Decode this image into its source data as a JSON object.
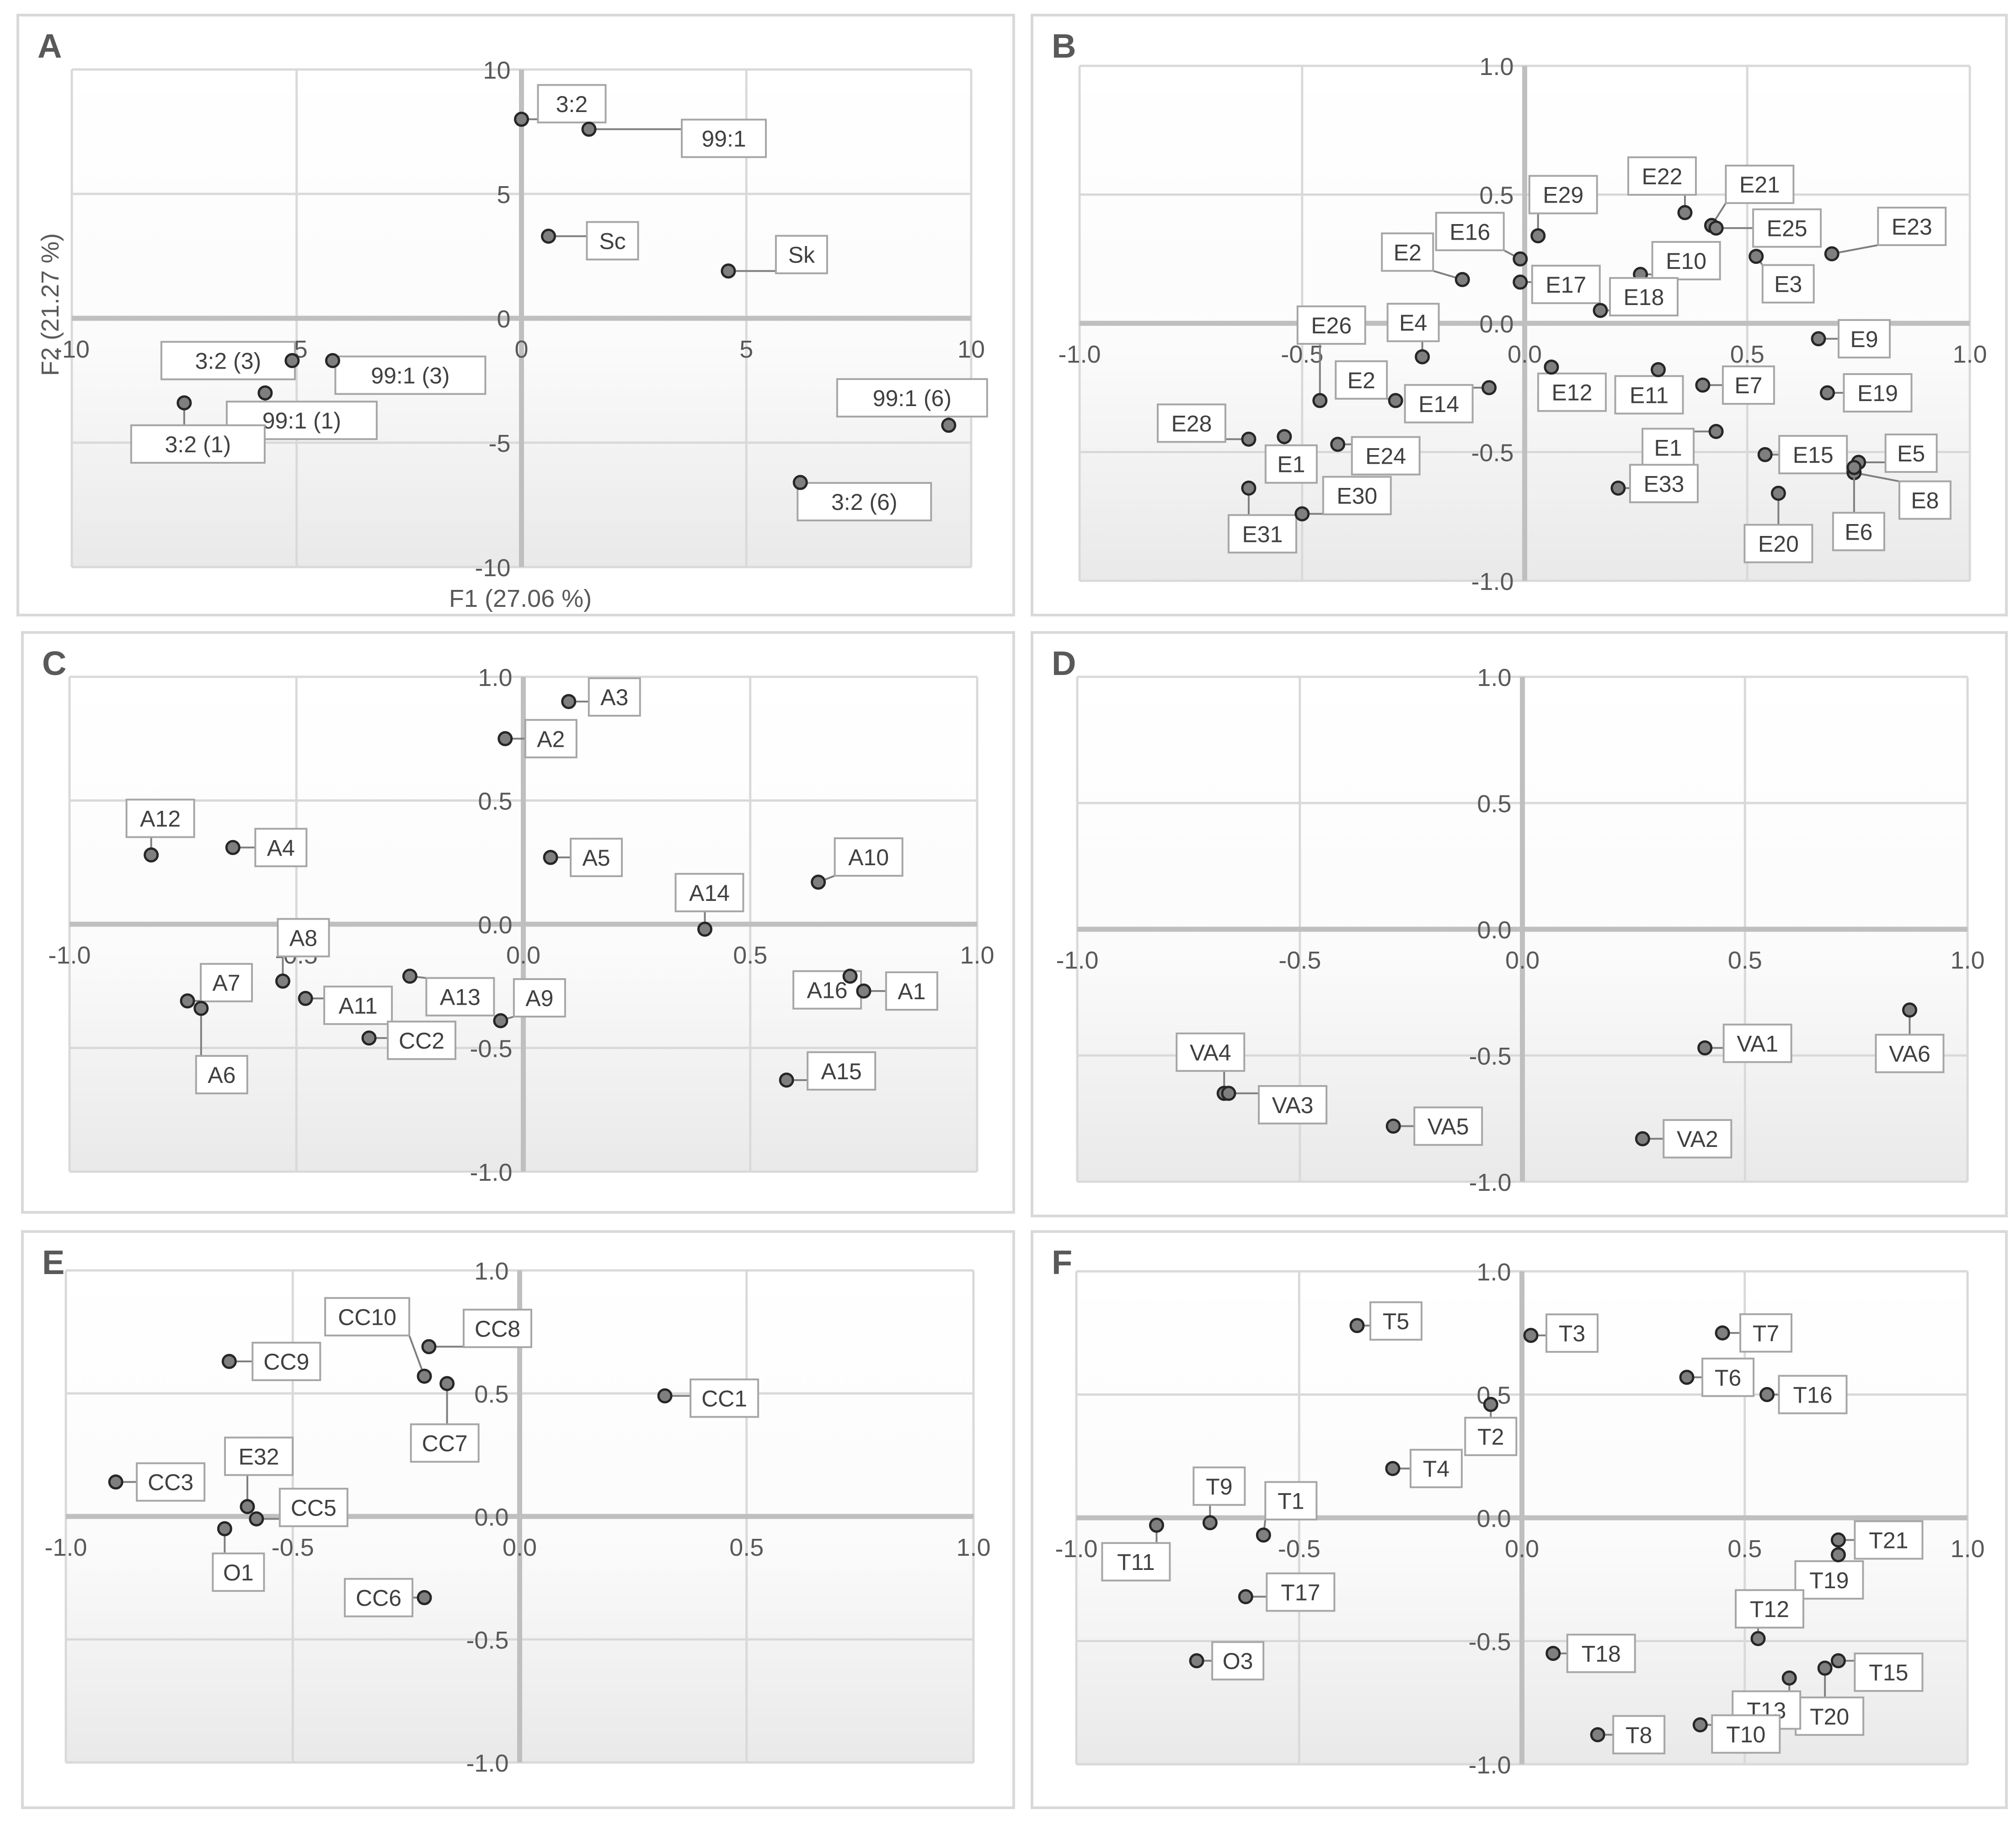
{
  "chart_data": [
    {
      "type": "scatter",
      "panel": "A",
      "xlabel": "F1 (27.06 %)",
      "ylabel": "F2 (21.27 %)",
      "xlim": [
        -10,
        10
      ],
      "ylim": [
        -10,
        10
      ],
      "xticks": [
        -10,
        -5,
        0,
        5,
        10
      ],
      "yticks": [
        -10,
        -5,
        0,
        5,
        10
      ],
      "tick_labels_x": [
        "-10",
        "-5",
        "0",
        "5",
        "10"
      ],
      "tick_labels_y": [
        "-10",
        "-5",
        "0",
        "5",
        "10"
      ],
      "points": [
        {
          "label": "3:2",
          "x": 0.0,
          "y": 8.0
        },
        {
          "label": "99:1",
          "x": 1.5,
          "y": 7.6
        },
        {
          "label": "Sc",
          "x": 0.6,
          "y": 3.3
        },
        {
          "label": "Sk",
          "x": 4.6,
          "y": 1.9
        },
        {
          "label": "3:2 (3)",
          "x": -5.1,
          "y": -1.7
        },
        {
          "label": "99:1 (3)",
          "x": -4.2,
          "y": -1.7
        },
        {
          "label": "99:1 (1)",
          "x": -5.7,
          "y": -3.0
        },
        {
          "label": "3:2 (1)",
          "x": -7.5,
          "y": -3.4
        },
        {
          "label": "99:1 (6)",
          "x": 9.5,
          "y": -4.3
        },
        {
          "label": "3:2 (6)",
          "x": 6.2,
          "y": -6.6
        }
      ]
    },
    {
      "type": "scatter",
      "panel": "B",
      "xlim": [
        -1.0,
        1.0
      ],
      "ylim": [
        -1.0,
        1.0
      ],
      "xticks": [
        -1.0,
        -0.5,
        0.0,
        0.5,
        1.0
      ],
      "yticks": [
        -1.0,
        -0.5,
        0.0,
        0.5,
        1.0
      ],
      "tick_labels_x": [
        "-1.0",
        "-0.5",
        "0.0",
        "0.5",
        "1.0"
      ],
      "tick_labels_y": [
        "-1.0",
        "-0.5",
        "0.0",
        "0.5",
        "1.0"
      ],
      "points": [
        {
          "label": "E22",
          "x": 0.36,
          "y": 0.43
        },
        {
          "label": "E21",
          "x": 0.42,
          "y": 0.38
        },
        {
          "label": "E25",
          "x": 0.43,
          "y": 0.37
        },
        {
          "label": "E29",
          "x": 0.03,
          "y": 0.34
        },
        {
          "label": "E16",
          "x": -0.01,
          "y": 0.25
        },
        {
          "label": "E23",
          "x": 0.69,
          "y": 0.27
        },
        {
          "label": "E3",
          "x": 0.52,
          "y": 0.26
        },
        {
          "label": "E10",
          "x": 0.26,
          "y": 0.19
        },
        {
          "label": "E2",
          "x": -0.14,
          "y": 0.17
        },
        {
          "label": "E17",
          "x": -0.01,
          "y": 0.16
        },
        {
          "label": "E18",
          "x": 0.17,
          "y": 0.05
        },
        {
          "label": "E9",
          "x": 0.66,
          "y": -0.06
        },
        {
          "label": "E4",
          "x": -0.23,
          "y": -0.13
        },
        {
          "label": "E12",
          "x": 0.06,
          "y": -0.17
        },
        {
          "label": "E11",
          "x": 0.3,
          "y": -0.18
        },
        {
          "label": "E7",
          "x": 0.4,
          "y": -0.24
        },
        {
          "label": "E19",
          "x": 0.68,
          "y": -0.27
        },
        {
          "label": "E14",
          "x": -0.08,
          "y": -0.25
        },
        {
          "label": "E26",
          "x": -0.46,
          "y": -0.3
        },
        {
          "label": "E2",
          "x": -0.29,
          "y": -0.3
        },
        {
          "label": "E28",
          "x": -0.62,
          "y": -0.45
        },
        {
          "label": "E1",
          "x": -0.54,
          "y": -0.44
        },
        {
          "label": "E24",
          "x": -0.42,
          "y": -0.47
        },
        {
          "label": "E1",
          "x": 0.43,
          "y": -0.42
        },
        {
          "label": "E15",
          "x": 0.54,
          "y": -0.51
        },
        {
          "label": "E5",
          "x": 0.75,
          "y": -0.54
        },
        {
          "label": "E8",
          "x": 0.74,
          "y": -0.58
        },
        {
          "label": "E6",
          "x": 0.74,
          "y": -0.56
        },
        {
          "label": "E20",
          "x": 0.57,
          "y": -0.66
        },
        {
          "label": "E33",
          "x": 0.21,
          "y": -0.64
        },
        {
          "label": "E31",
          "x": -0.62,
          "y": -0.64
        },
        {
          "label": "E30",
          "x": -0.5,
          "y": -0.74
        }
      ]
    },
    {
      "type": "scatter",
      "panel": "C",
      "xlim": [
        -1.0,
        1.0
      ],
      "ylim": [
        -1.0,
        1.0
      ],
      "xticks": [
        -1.0,
        -0.5,
        0.0,
        0.5,
        1.0
      ],
      "yticks": [
        -1.0,
        -0.5,
        0.0,
        0.5,
        1.0
      ],
      "tick_labels_x": [
        "-1.0",
        "-0.5",
        "0.0",
        "0.5",
        "1.0"
      ],
      "tick_labels_y": [
        "-1.0",
        "-0.5",
        "0.0",
        "0.5",
        "1.0"
      ],
      "points": [
        {
          "label": "A3",
          "x": 0.1,
          "y": 0.9
        },
        {
          "label": "A2",
          "x": -0.04,
          "y": 0.75
        },
        {
          "label": "A12",
          "x": -0.82,
          "y": 0.28
        },
        {
          "label": "A4",
          "x": -0.64,
          "y": 0.31
        },
        {
          "label": "A5",
          "x": 0.06,
          "y": 0.27
        },
        {
          "label": "A10",
          "x": 0.65,
          "y": 0.17
        },
        {
          "label": "A14",
          "x": 0.4,
          "y": -0.02
        },
        {
          "label": "A8",
          "x": -0.53,
          "y": -0.23
        },
        {
          "label": "A11",
          "x": -0.48,
          "y": -0.3
        },
        {
          "label": "A13",
          "x": -0.25,
          "y": -0.21
        },
        {
          "label": "A9",
          "x": -0.05,
          "y": -0.39
        },
        {
          "label": "CC2",
          "x": -0.34,
          "y": -0.46
        },
        {
          "label": "A7",
          "x": -0.74,
          "y": -0.31
        },
        {
          "label": "A6",
          "x": -0.71,
          "y": -0.34
        },
        {
          "label": "A16",
          "x": 0.72,
          "y": -0.21
        },
        {
          "label": "A1",
          "x": 0.75,
          "y": -0.27
        },
        {
          "label": "A15",
          "x": 0.58,
          "y": -0.63
        }
      ]
    },
    {
      "type": "scatter",
      "panel": "D",
      "xlim": [
        -1.0,
        1.0
      ],
      "ylim": [
        -1.0,
        1.0
      ],
      "xticks": [
        -1.0,
        -0.5,
        0.0,
        0.5,
        1.0
      ],
      "yticks": [
        -1.0,
        -0.5,
        0.0,
        0.5,
        1.0
      ],
      "tick_labels_x": [
        "-1.0",
        "-0.5",
        "0.0",
        "0.5",
        "1.0"
      ],
      "tick_labels_y": [
        "-1.0",
        "-0.5",
        "0.0",
        "0.5",
        "1.0"
      ],
      "points": [
        {
          "label": "VA6",
          "x": 0.87,
          "y": -0.32
        },
        {
          "label": "VA1",
          "x": 0.41,
          "y": -0.47
        },
        {
          "label": "VA4",
          "x": -0.67,
          "y": -0.65
        },
        {
          "label": "VA3",
          "x": -0.66,
          "y": -0.65
        },
        {
          "label": "VA5",
          "x": -0.29,
          "y": -0.78
        },
        {
          "label": "VA2",
          "x": 0.27,
          "y": -0.83
        }
      ]
    },
    {
      "type": "scatter",
      "panel": "E",
      "xlim": [
        -1.0,
        1.0
      ],
      "ylim": [
        -1.0,
        1.0
      ],
      "xticks": [
        -1.0,
        -0.5,
        0.0,
        0.5,
        1.0
      ],
      "yticks": [
        -1.0,
        -0.5,
        0.0,
        0.5,
        1.0
      ],
      "tick_labels_x": [
        "-1.0",
        "-0.5",
        "0.0",
        "0.5",
        "1.0"
      ],
      "tick_labels_y": [
        "-1.0",
        "-0.5",
        "0.0",
        "0.5",
        "1.0"
      ],
      "points": [
        {
          "label": "CC8",
          "x": -0.2,
          "y": 0.69
        },
        {
          "label": "CC10",
          "x": -0.21,
          "y": 0.57
        },
        {
          "label": "CC7",
          "x": -0.16,
          "y": 0.54
        },
        {
          "label": "CC9",
          "x": -0.64,
          "y": 0.63
        },
        {
          "label": "CC1",
          "x": 0.32,
          "y": 0.49
        },
        {
          "label": "CC3",
          "x": -0.89,
          "y": 0.14
        },
        {
          "label": "E32",
          "x": -0.6,
          "y": 0.04
        },
        {
          "label": "CC5",
          "x": -0.58,
          "y": -0.01
        },
        {
          "label": "O1",
          "x": -0.65,
          "y": -0.05
        },
        {
          "label": "CC6",
          "x": -0.21,
          "y": -0.33
        }
      ]
    },
    {
      "type": "scatter",
      "panel": "F",
      "xlim": [
        -1.0,
        1.0
      ],
      "ylim": [
        -1.0,
        1.0
      ],
      "xticks": [
        -1.0,
        -0.5,
        0.0,
        0.5,
        1.0
      ],
      "yticks": [
        -1.0,
        -0.5,
        0.0,
        0.5,
        1.0
      ],
      "tick_labels_x": [
        "-1.0",
        "-0.5",
        "0.0",
        "0.5",
        "1.0"
      ],
      "tick_labels_y": [
        "-1.0",
        "-0.5",
        "0.0",
        "0.5",
        "1.0"
      ],
      "points": [
        {
          "label": "T5",
          "x": -0.37,
          "y": 0.78
        },
        {
          "label": "T3",
          "x": 0.02,
          "y": 0.74
        },
        {
          "label": "T7",
          "x": 0.45,
          "y": 0.75
        },
        {
          "label": "T6",
          "x": 0.37,
          "y": 0.57
        },
        {
          "label": "T16",
          "x": 0.55,
          "y": 0.5
        },
        {
          "label": "T2",
          "x": -0.07,
          "y": 0.46
        },
        {
          "label": "T4",
          "x": -0.29,
          "y": 0.2
        },
        {
          "label": "T9",
          "x": -0.7,
          "y": -0.02
        },
        {
          "label": "T11",
          "x": -0.82,
          "y": -0.03
        },
        {
          "label": "T1",
          "x": -0.58,
          "y": -0.07
        },
        {
          "label": "T21",
          "x": 0.71,
          "y": -0.09
        },
        {
          "label": "T19",
          "x": 0.71,
          "y": -0.15
        },
        {
          "label": "T17",
          "x": -0.62,
          "y": -0.32
        },
        {
          "label": "T12",
          "x": 0.53,
          "y": -0.49
        },
        {
          "label": "T18",
          "x": 0.07,
          "y": -0.55
        },
        {
          "label": "O3",
          "x": -0.73,
          "y": -0.58
        },
        {
          "label": "T15",
          "x": 0.71,
          "y": -0.58
        },
        {
          "label": "T20",
          "x": 0.68,
          "y": -0.61
        },
        {
          "label": "T13",
          "x": 0.6,
          "y": -0.65
        },
        {
          "label": "T10",
          "x": 0.4,
          "y": -0.84
        },
        {
          "label": "T8",
          "x": 0.17,
          "y": -0.88
        }
      ]
    }
  ]
}
